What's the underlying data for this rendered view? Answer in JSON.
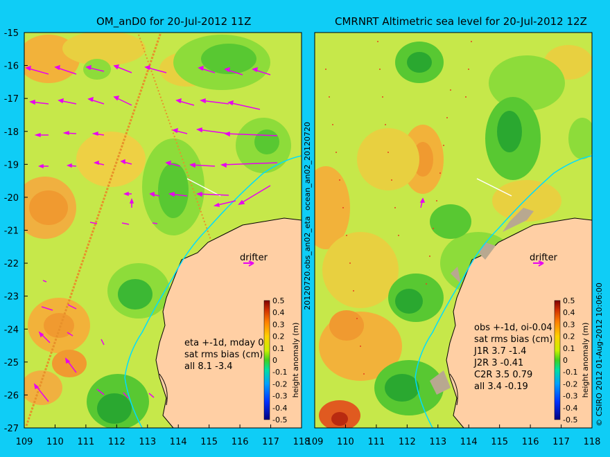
{
  "panels": [
    {
      "title": "OM_anD0 for 20-Jul-2012 11Z",
      "annotation": [
        "eta +-1d, mday 0",
        "sat rms bias (cm)",
        "all 8.1 -3.4"
      ]
    },
    {
      "title": "CMRNRT Altimetric sea level  for 20-Jul-2012 12Z",
      "annotation": [
        "obs +-1d, oi-0.04",
        "sat rms bias (cm)",
        "J1R   3.7 -1.4",
        "J2R   3 -0.41",
        "C2R   3.5 0.79",
        "all 3.4 -0.19"
      ]
    }
  ],
  "axes": {
    "x_ticks": [
      "109",
      "110",
      "111",
      "112",
      "113",
      "114",
      "115",
      "116",
      "117",
      "118"
    ],
    "y_ticks": [
      "-15",
      "-16",
      "-17",
      "-18",
      "-19",
      "-20",
      "-21",
      "-22",
      "-23",
      "-24",
      "-25",
      "-26",
      "-27"
    ],
    "lon_range": [
      109,
      118
    ],
    "lat_range": [
      -27,
      -15
    ]
  },
  "colorbar": {
    "label": "height anomaly (m)",
    "ticks": [
      "0.5",
      "0.4",
      "0.3",
      "0.2",
      "0.1",
      "0",
      "-0.1",
      "-0.2",
      "-0.3",
      "-0.4",
      "-0.5"
    ]
  },
  "drifter_label": "drifter",
  "side_label_1": "ocean_an02_20120720",
  "side_label_2": "20120720.obs_an02_eta",
  "credit": "© CSIRO 2012   01-Aug-2012 10:06:00",
  "colors": {
    "background": "#0fcdf6",
    "land": "#ffcfa4",
    "arrows": "#e800f0",
    "coast_line": "#00dcff",
    "positive": "#f0a020",
    "neutral": "#b8e800",
    "negative": "#2aa830"
  }
}
